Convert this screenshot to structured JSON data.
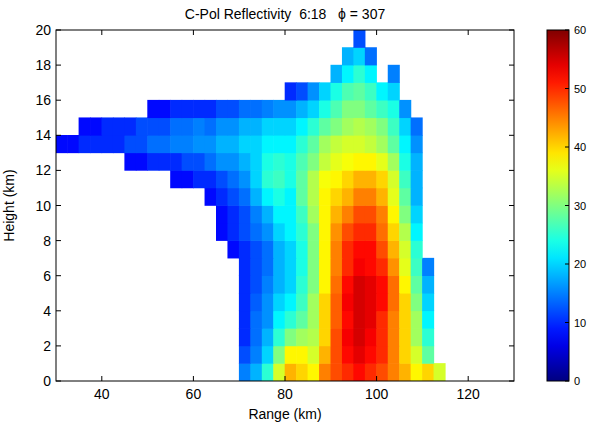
{
  "chart_data": {
    "type": "heatmap",
    "title": "C-Pol Reflectivity  6:18   ϕ = 307",
    "x_label": "Range (km)",
    "y_label": "Height (km)",
    "xlim": [
      30,
      130
    ],
    "ylim": [
      0,
      20
    ],
    "xticks": [
      40,
      60,
      80,
      100,
      120
    ],
    "yticks": [
      0,
      2,
      4,
      6,
      8,
      10,
      12,
      14,
      16,
      18,
      20
    ],
    "x_edges": [
      30,
      32.5,
      35,
      37.5,
      40,
      42.5,
      45,
      47.5,
      50,
      52.5,
      55,
      57.5,
      60,
      62.5,
      65,
      67.5,
      70,
      72.5,
      75,
      77.5,
      80,
      82.5,
      85,
      87.5,
      90,
      92.5,
      95,
      97.5,
      100,
      102.5,
      105,
      107.5,
      110,
      112.5,
      115,
      117.5,
      120
    ],
    "y_edges": [
      0,
      1,
      2,
      3,
      4,
      5,
      6,
      7,
      8,
      9,
      10,
      11,
      12,
      13,
      14,
      15,
      16,
      17,
      18,
      19,
      20
    ],
    "cells": [
      [
        null,
        null,
        null,
        null,
        null,
        null,
        null,
        null,
        null,
        null,
        null,
        null,
        null,
        null,
        null,
        null,
        15,
        18,
        25,
        35,
        42,
        40,
        38,
        45,
        48,
        50,
        52,
        50,
        48,
        45,
        42,
        38,
        40,
        35,
        null,
        null
      ],
      [
        null,
        null,
        null,
        null,
        null,
        null,
        null,
        null,
        null,
        null,
        null,
        null,
        null,
        null,
        null,
        null,
        12,
        15,
        20,
        30,
        38,
        38,
        35,
        42,
        48,
        52,
        54,
        52,
        50,
        45,
        40,
        35,
        28,
        null,
        null,
        null
      ],
      [
        null,
        null,
        null,
        null,
        null,
        null,
        null,
        null,
        null,
        null,
        null,
        null,
        null,
        null,
        null,
        null,
        10,
        14,
        18,
        25,
        30,
        32,
        33,
        40,
        48,
        53,
        55,
        53,
        50,
        45,
        40,
        32,
        25,
        null,
        null,
        null
      ],
      [
        null,
        null,
        null,
        null,
        null,
        null,
        null,
        null,
        null,
        null,
        null,
        null,
        null,
        null,
        null,
        null,
        10,
        14,
        16,
        22,
        25,
        28,
        32,
        40,
        47,
        52,
        55,
        54,
        50,
        45,
        40,
        32,
        22,
        null,
        null,
        null
      ],
      [
        null,
        null,
        null,
        null,
        null,
        null,
        null,
        null,
        null,
        null,
        null,
        null,
        null,
        null,
        null,
        null,
        10,
        13,
        16,
        20,
        22,
        26,
        32,
        40,
        47,
        53,
        55,
        54,
        52,
        46,
        40,
        30,
        20,
        null,
        null,
        null
      ],
      [
        null,
        null,
        null,
        null,
        null,
        null,
        null,
        null,
        null,
        null,
        null,
        null,
        null,
        null,
        null,
        null,
        10,
        12,
        15,
        18,
        20,
        25,
        30,
        38,
        46,
        52,
        55,
        54,
        52,
        46,
        38,
        28,
        18,
        null,
        null,
        null
      ],
      [
        null,
        null,
        null,
        null,
        null,
        null,
        null,
        null,
        null,
        null,
        null,
        null,
        null,
        null,
        null,
        null,
        10,
        12,
        14,
        18,
        20,
        24,
        30,
        38,
        45,
        50,
        53,
        52,
        50,
        44,
        36,
        26,
        15,
        null,
        null,
        null
      ],
      [
        null,
        null,
        null,
        null,
        null,
        null,
        null,
        null,
        null,
        null,
        null,
        null,
        null,
        null,
        null,
        8,
        10,
        12,
        14,
        18,
        20,
        24,
        30,
        38,
        45,
        50,
        52,
        52,
        48,
        42,
        35,
        25,
        null,
        null,
        null,
        null
      ],
      [
        null,
        null,
        null,
        null,
        null,
        null,
        null,
        null,
        null,
        null,
        null,
        null,
        null,
        null,
        8,
        10,
        12,
        14,
        16,
        20,
        22,
        25,
        30,
        38,
        44,
        48,
        50,
        50,
        46,
        40,
        33,
        22,
        null,
        null,
        null,
        null
      ],
      [
        null,
        null,
        null,
        null,
        null,
        null,
        null,
        null,
        null,
        null,
        null,
        null,
        null,
        null,
        8,
        10,
        12,
        15,
        18,
        22,
        22,
        26,
        32,
        38,
        42,
        45,
        48,
        48,
        45,
        38,
        30,
        20,
        null,
        null,
        null,
        null
      ],
      [
        null,
        null,
        null,
        null,
        null,
        null,
        null,
        null,
        null,
        null,
        null,
        null,
        null,
        8,
        10,
        12,
        14,
        18,
        22,
        24,
        22,
        28,
        33,
        38,
        40,
        42,
        45,
        45,
        42,
        36,
        28,
        18,
        null,
        null,
        null,
        null
      ],
      [
        null,
        null,
        null,
        null,
        null,
        null,
        null,
        null,
        null,
        null,
        8,
        8,
        10,
        10,
        12,
        14,
        16,
        20,
        25,
        26,
        24,
        28,
        33,
        37,
        38,
        40,
        42,
        42,
        40,
        35,
        26,
        18,
        null,
        null,
        null,
        null
      ],
      [
        null,
        null,
        null,
        null,
        null,
        null,
        8,
        8,
        10,
        10,
        10,
        12,
        12,
        14,
        16,
        16,
        18,
        20,
        24,
        25,
        24,
        27,
        30,
        34,
        36,
        37,
        38,
        38,
        36,
        32,
        24,
        18,
        null,
        null,
        null,
        null
      ],
      [
        8,
        8,
        10,
        10,
        10,
        10,
        12,
        12,
        14,
        14,
        15,
        15,
        16,
        16,
        18,
        18,
        20,
        20,
        22,
        22,
        22,
        25,
        28,
        32,
        34,
        35,
        35,
        34,
        32,
        28,
        22,
        16,
        null,
        null,
        null,
        null
      ],
      [
        null,
        null,
        8,
        8,
        10,
        10,
        10,
        12,
        12,
        12,
        14,
        14,
        15,
        14,
        16,
        16,
        18,
        18,
        20,
        20,
        20,
        22,
        25,
        28,
        30,
        32,
        33,
        32,
        30,
        26,
        20,
        14,
        null,
        null,
        null,
        null
      ],
      [
        null,
        null,
        null,
        null,
        null,
        null,
        null,
        null,
        8,
        8,
        10,
        10,
        10,
        10,
        12,
        12,
        14,
        14,
        15,
        16,
        16,
        18,
        20,
        24,
        27,
        30,
        30,
        28,
        26,
        24,
        16,
        null,
        null,
        null,
        null,
        null
      ],
      [
        null,
        null,
        null,
        null,
        null,
        null,
        null,
        null,
        null,
        null,
        null,
        null,
        null,
        null,
        null,
        null,
        null,
        null,
        null,
        null,
        10,
        12,
        16,
        20,
        24,
        27,
        28,
        26,
        22,
        20,
        null,
        null,
        null,
        null,
        null,
        null
      ],
      [
        null,
        null,
        null,
        null,
        null,
        null,
        null,
        null,
        null,
        null,
        null,
        null,
        null,
        null,
        null,
        null,
        null,
        null,
        null,
        null,
        null,
        null,
        null,
        null,
        18,
        22,
        25,
        22,
        null,
        15,
        null,
        null,
        null,
        null,
        null,
        null
      ],
      [
        null,
        null,
        null,
        null,
        null,
        null,
        null,
        null,
        null,
        null,
        null,
        null,
        null,
        null,
        null,
        null,
        null,
        null,
        null,
        null,
        null,
        null,
        null,
        null,
        null,
        18,
        20,
        14,
        null,
        null,
        null,
        null,
        null,
        null,
        null,
        null
      ],
      [
        null,
        null,
        null,
        null,
        null,
        null,
        null,
        null,
        null,
        null,
        null,
        null,
        null,
        null,
        null,
        null,
        null,
        null,
        null,
        null,
        null,
        null,
        null,
        null,
        null,
        null,
        12,
        null,
        null,
        null,
        null,
        null,
        null,
        null,
        null,
        null
      ]
    ],
    "colorbar": {
      "range": [
        0,
        60
      ],
      "ticks": [
        0,
        10,
        20,
        30,
        40,
        50,
        60
      ]
    }
  }
}
